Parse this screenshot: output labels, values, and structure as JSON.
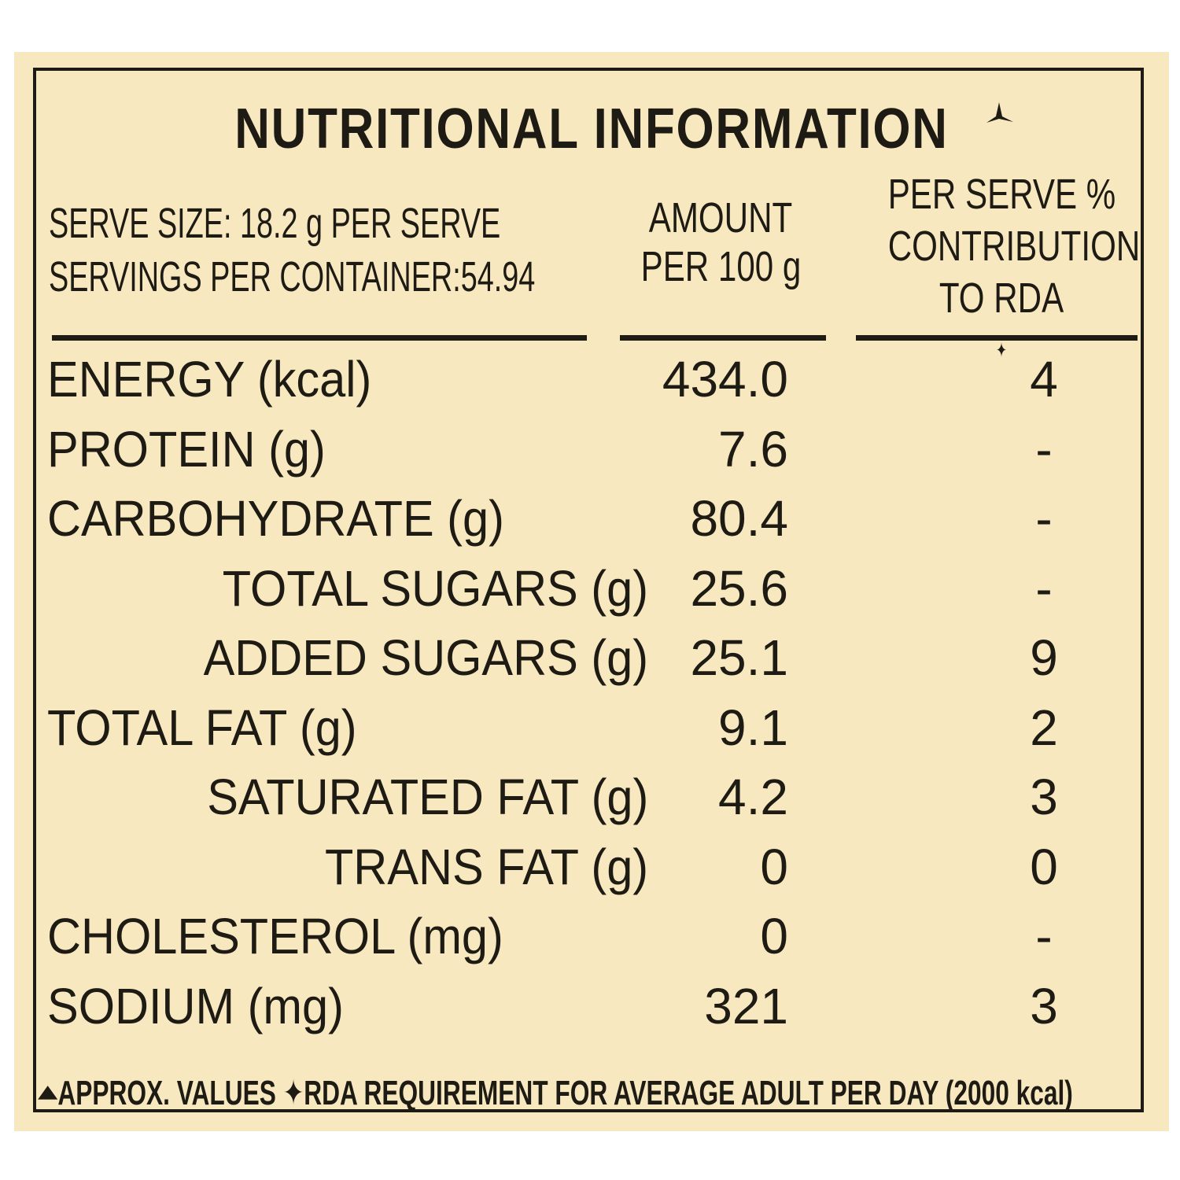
{
  "title": "NUTRITIONAL INFORMATION",
  "serve": {
    "size_line": "SERVE SIZE: 18.2 g PER SERVE",
    "servings_line": "SERVINGS PER CONTAINER:54.94"
  },
  "columns": {
    "amount_line1": "AMOUNT",
    "amount_line2": "PER 100 g",
    "rda_line1": "PER SERVE %",
    "rda_line2": "CONTRIBUTION",
    "rda_line3": "TO RDA"
  },
  "rows": [
    {
      "name": "ENERGY (kcal)",
      "amount": "434.0",
      "pct": "4",
      "indent": 0
    },
    {
      "name": "PROTEIN (g)",
      "amount": "7.6",
      "pct": "-",
      "indent": 0
    },
    {
      "name": "CARBOHYDRATE (g)",
      "amount": "80.4",
      "pct": "-",
      "indent": 0
    },
    {
      "name": "TOTAL SUGARS (g)",
      "amount": "25.6",
      "pct": "-",
      "indent": 1
    },
    {
      "name": "ADDED SUGARS (g)",
      "amount": "25.1",
      "pct": "9",
      "indent": 1
    },
    {
      "name": "TOTAL FAT (g)",
      "amount": "9.1",
      "pct": "2",
      "indent": 0
    },
    {
      "name": "SATURATED FAT (g)",
      "amount": "4.2",
      "pct": "3",
      "indent": 1
    },
    {
      "name": "TRANS FAT (g)",
      "amount": "0",
      "pct": "0",
      "indent": 2
    },
    {
      "name": "CHOLESTEROL (mg)",
      "amount": "0",
      "pct": "-",
      "indent": 0
    },
    {
      "name": "SODIUM (mg)",
      "amount": "321",
      "pct": "3",
      "indent": 0
    }
  ],
  "footer": {
    "approx": "APPROX. VALUES",
    "rda_note": "RDA REQUIREMENT FOR AVERAGE ADULT PER DAY (2000 kcal)"
  },
  "colors": {
    "background": "#f8e8bf",
    "ink": "#1d1b13"
  }
}
